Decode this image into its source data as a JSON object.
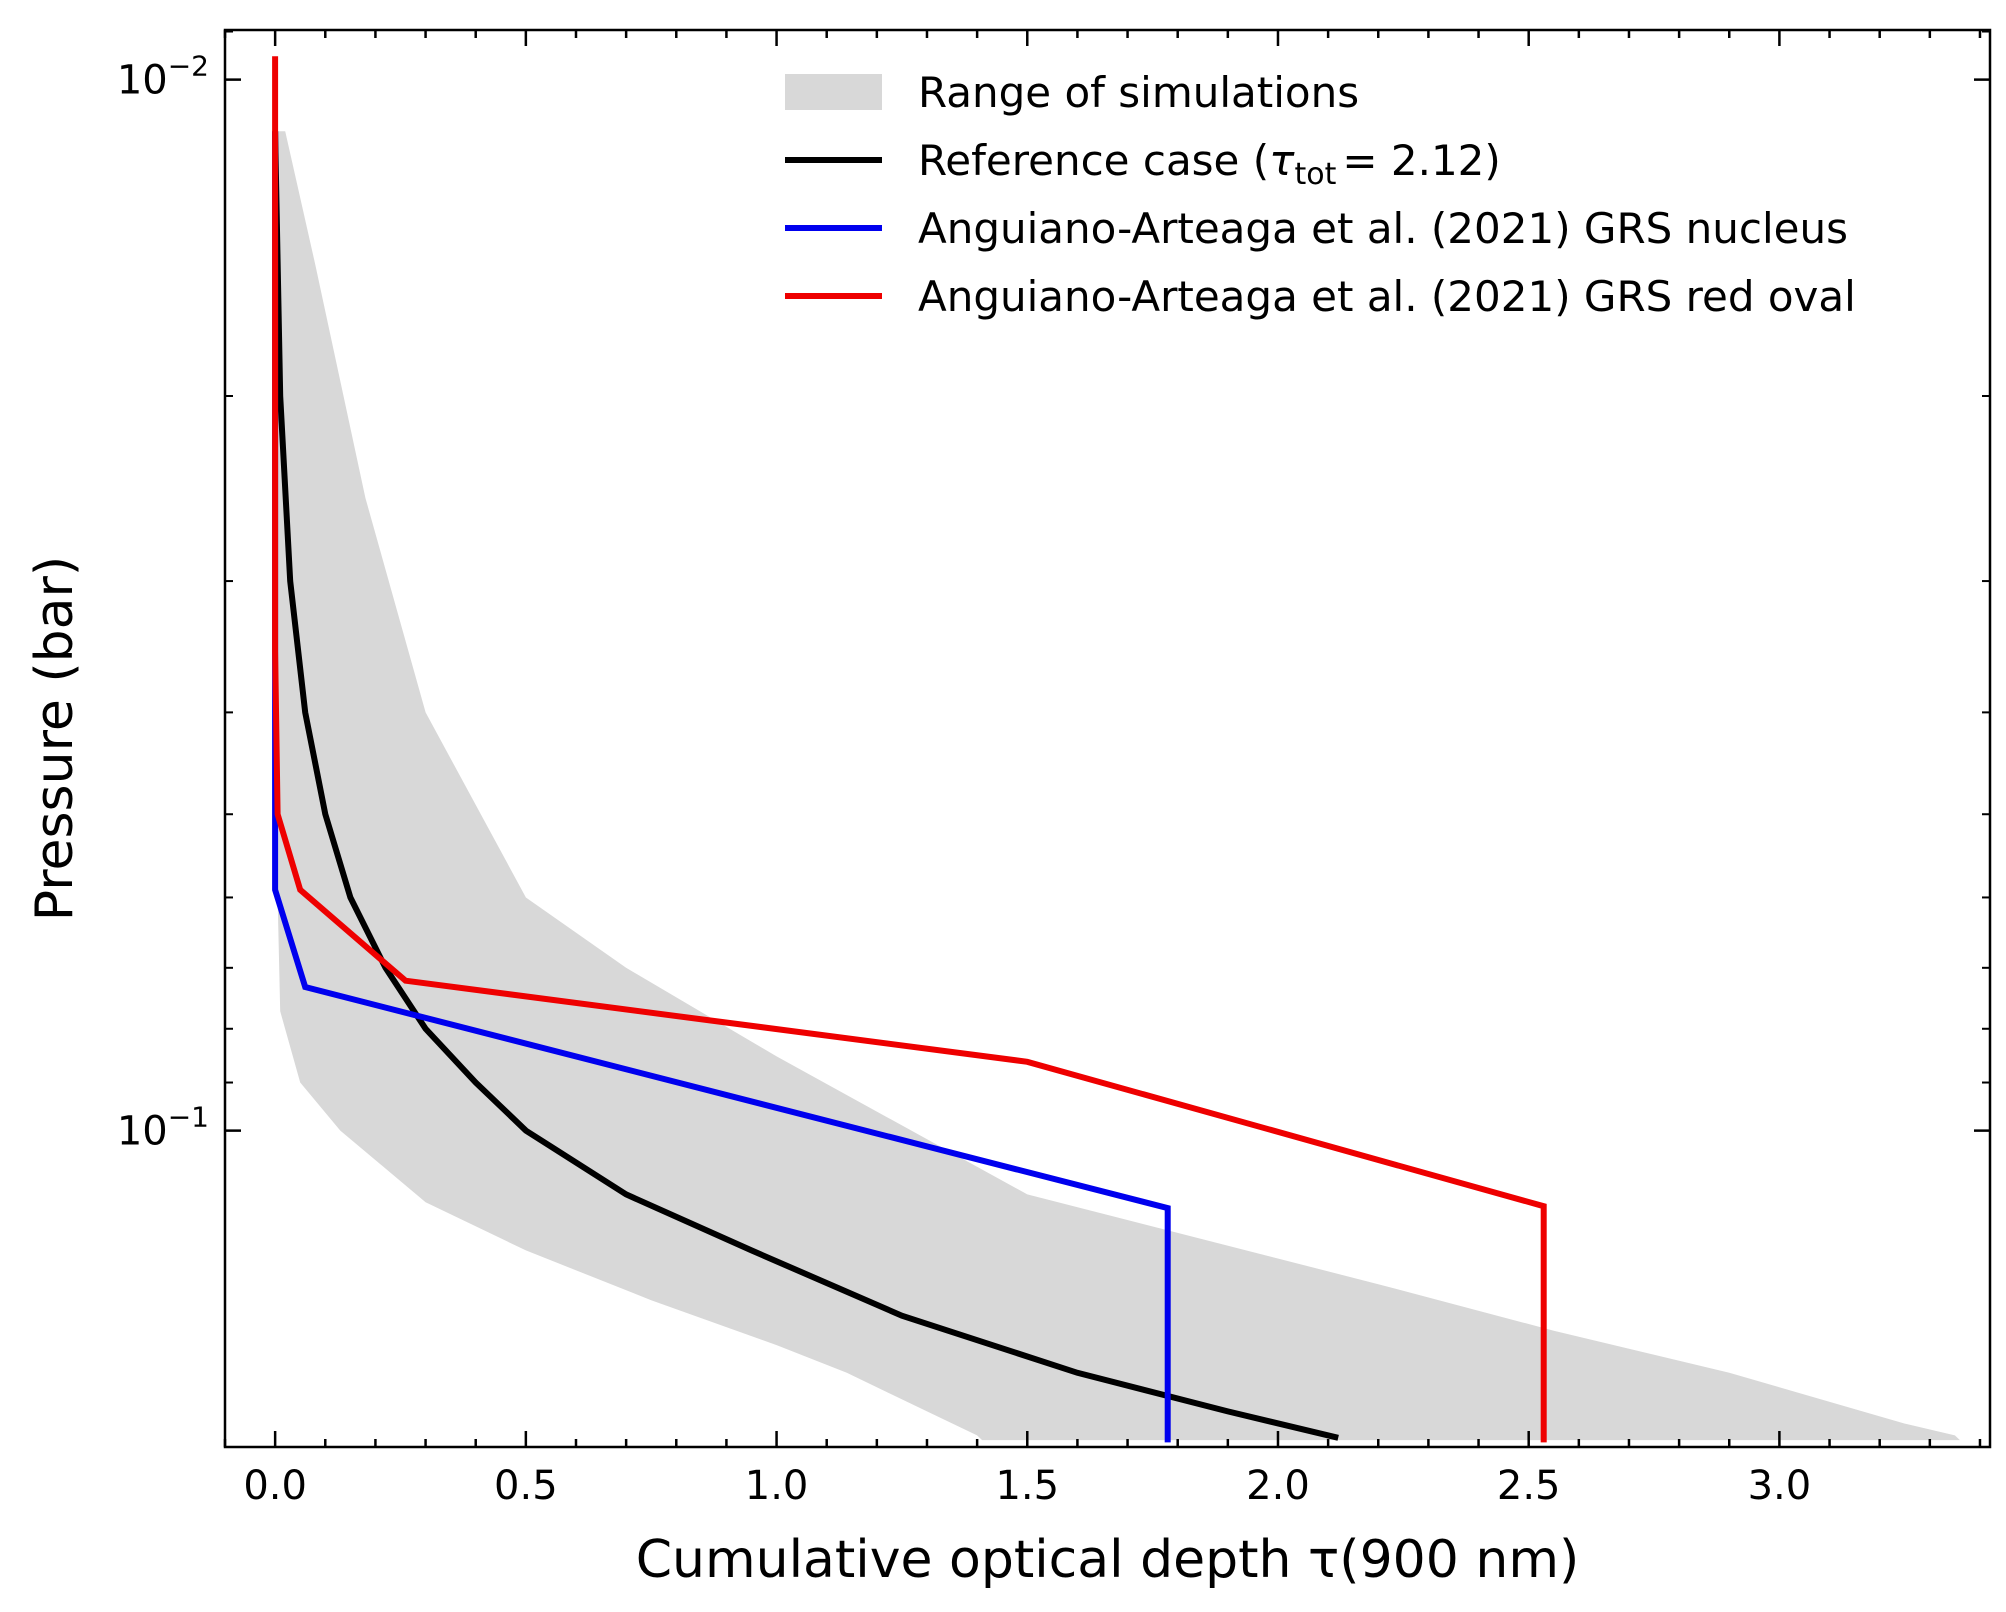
{
  "chart_data": {
    "type": "line",
    "title": "",
    "xlabel": "Cumulative optical depth τ(900 nm)",
    "ylabel": "Pressure (bar)",
    "xlim": [
      -0.1,
      3.42
    ],
    "ylim": [
      0.00897,
      0.2
    ],
    "yscale": "log",
    "x_ticks": [
      {
        "value": 0.0,
        "label": "0.0"
      },
      {
        "value": 0.5,
        "label": "0.5"
      },
      {
        "value": 1.0,
        "label": "1.0"
      },
      {
        "value": 1.5,
        "label": "1.5"
      },
      {
        "value": 2.0,
        "label": "2.0"
      },
      {
        "value": 2.5,
        "label": "2.5"
      },
      {
        "value": 3.0,
        "label": "3.0"
      }
    ],
    "y_ticks": [
      {
        "value": 0.01,
        "base": "10",
        "exp": "−2"
      },
      {
        "value": 0.1,
        "base": "10",
        "exp": "−1"
      }
    ],
    "legend_position": "top-right",
    "range": {
      "name": "Range of simulations",
      "color": "#d8d8d8",
      "left": [
        [
          0.0,
          0.0112
        ],
        [
          0.003,
          0.03
        ],
        [
          0.005,
          0.06
        ],
        [
          0.01,
          0.077
        ],
        [
          0.05,
          0.09
        ],
        [
          0.13,
          0.1
        ],
        [
          0.3,
          0.117
        ],
        [
          0.5,
          0.13
        ],
        [
          0.75,
          0.145
        ],
        [
          1.0,
          0.16
        ],
        [
          1.14,
          0.17
        ],
        [
          1.3,
          0.185
        ],
        [
          1.4,
          0.195
        ],
        [
          1.41,
          0.197
        ]
      ],
      "right": [
        [
          3.36,
          0.197
        ],
        [
          3.35,
          0.195
        ],
        [
          3.25,
          0.19
        ],
        [
          2.9,
          0.17
        ],
        [
          2.55,
          0.155
        ],
        [
          2.2,
          0.14
        ],
        [
          1.5,
          0.115
        ],
        [
          1.0,
          0.085
        ],
        [
          0.7,
          0.07
        ],
        [
          0.5,
          0.06
        ],
        [
          0.3,
          0.04
        ],
        [
          0.18,
          0.025
        ],
        [
          0.08,
          0.015
        ],
        [
          0.02,
          0.0112
        ]
      ]
    },
    "series": [
      {
        "name": "Reference case",
        "tau_label": "τ",
        "tau_sub": "tot",
        "tau_value": "= 2.12)",
        "color": "#000000",
        "points": [
          [
            0.0,
            0.0112
          ],
          [
            0.01,
            0.02
          ],
          [
            0.03,
            0.03
          ],
          [
            0.06,
            0.04
          ],
          [
            0.1,
            0.05
          ],
          [
            0.15,
            0.06
          ],
          [
            0.22,
            0.07
          ],
          [
            0.3,
            0.08
          ],
          [
            0.4,
            0.09
          ],
          [
            0.5,
            0.1
          ],
          [
            0.7,
            0.115
          ],
          [
            0.95,
            0.13
          ],
          [
            1.25,
            0.15
          ],
          [
            1.6,
            0.17
          ],
          [
            1.9,
            0.185
          ],
          [
            2.12,
            0.196
          ]
        ]
      },
      {
        "name": "Anguiano-Arteaga et al. (2021) GRS nucleus",
        "color": "#0000ee",
        "points": [
          [
            0.0,
            0.0112
          ],
          [
            0.0,
            0.05
          ],
          [
            0.0,
            0.059
          ],
          [
            0.06,
            0.073
          ],
          [
            1.78,
            0.1185
          ],
          [
            1.78,
            0.198
          ]
        ]
      },
      {
        "name": "Anguiano-Arteaga et al. (2021) GRS red oval",
        "color": "#ee0000",
        "points": [
          [
            0.0,
            0.0095
          ],
          [
            0.0,
            0.035
          ],
          [
            0.005,
            0.05
          ],
          [
            0.05,
            0.059
          ],
          [
            0.26,
            0.072
          ],
          [
            1.5,
            0.086
          ],
          [
            2.53,
            0.118
          ],
          [
            2.53,
            0.198
          ]
        ]
      }
    ]
  }
}
